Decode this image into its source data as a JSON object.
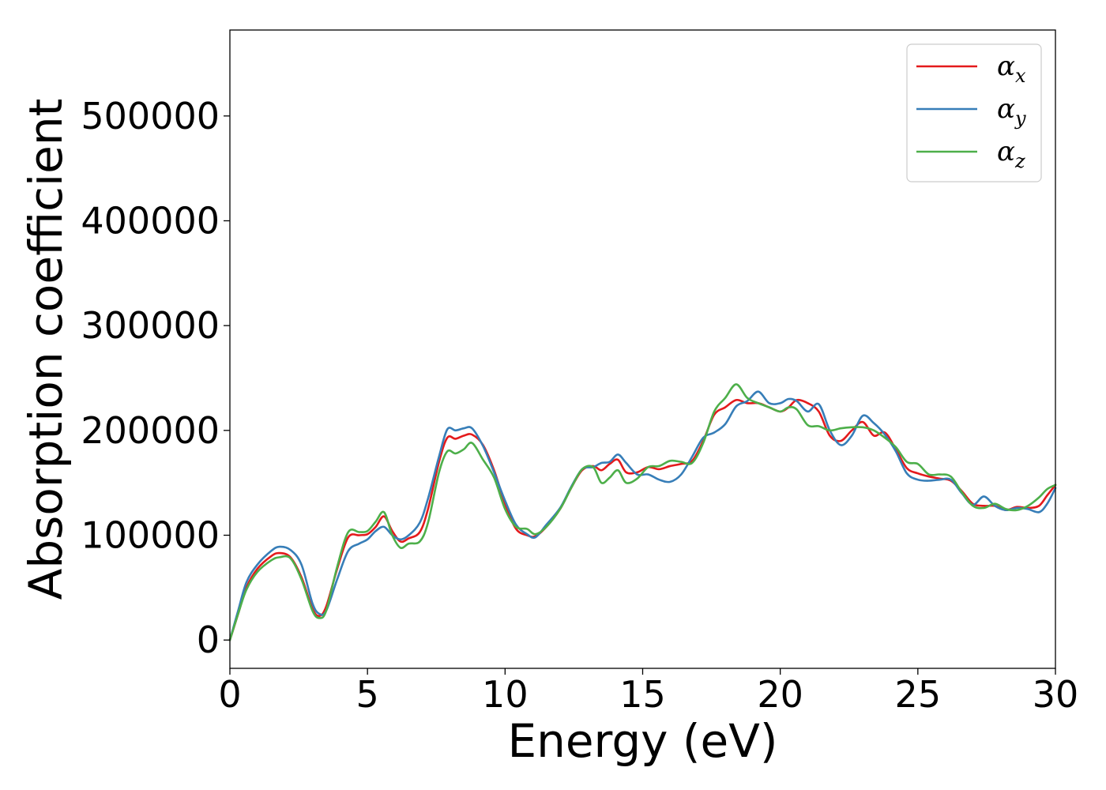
{
  "chart_data": {
    "type": "line",
    "title": "",
    "xlabel": "Energy (eV)",
    "ylabel": "Absorption coefficient",
    "xlim": [
      0,
      30
    ],
    "ylim": [
      -27000,
      582000
    ],
    "xticks": [
      0,
      5,
      10,
      15,
      20,
      25,
      30
    ],
    "yticks": [
      0,
      100000,
      200000,
      300000,
      400000,
      500000
    ],
    "grid": false,
    "legend_position": "top-right",
    "series": [
      {
        "name": "α",
        "subscript": "x",
        "color": "#e41a1c",
        "x": [
          0,
          0.3,
          0.6,
          1.0,
          1.5,
          1.8,
          2.2,
          2.6,
          3.0,
          3.25,
          3.5,
          3.9,
          4.3,
          4.7,
          5.0,
          5.3,
          5.6,
          5.9,
          6.2,
          6.5,
          6.9,
          7.2,
          7.6,
          7.9,
          8.2,
          8.5,
          8.8,
          9.2,
          9.6,
          10.0,
          10.4,
          10.8,
          11.1,
          11.5,
          12.0,
          12.4,
          12.8,
          13.2,
          13.5,
          13.8,
          14.1,
          14.4,
          14.8,
          15.2,
          15.6,
          16.0,
          16.4,
          16.8,
          17.2,
          17.6,
          18.0,
          18.4,
          18.8,
          19.2,
          19.6,
          20.0,
          20.3,
          20.6,
          21.0,
          21.4,
          21.8,
          22.2,
          22.6,
          23.0,
          23.4,
          23.8,
          24.2,
          24.6,
          25.0,
          25.4,
          25.8,
          26.2,
          26.6,
          27.0,
          27.4,
          27.8,
          28.2,
          28.6,
          29.0,
          29.4,
          29.7,
          30.0
        ],
        "y": [
          0,
          25000,
          50000,
          68000,
          80000,
          83000,
          79000,
          60000,
          30000,
          23000,
          32000,
          68000,
          98000,
          100000,
          101000,
          108000,
          118000,
          104000,
          94000,
          97000,
          103000,
          125000,
          170000,
          193000,
          192000,
          195000,
          196000,
          186000,
          162000,
          130000,
          106000,
          100000,
          99000,
          108000,
          125000,
          145000,
          162000,
          166000,
          162000,
          168000,
          172000,
          160000,
          160000,
          165000,
          163000,
          166000,
          168000,
          171000,
          190000,
          215000,
          222000,
          229000,
          226000,
          226000,
          222000,
          218000,
          222000,
          229000,
          226000,
          218000,
          195000,
          190000,
          200000,
          208000,
          195000,
          198000,
          182000,
          164000,
          159000,
          156000,
          154000,
          152000,
          142000,
          130000,
          128000,
          128000,
          124000,
          127000,
          126000,
          128000,
          138000,
          148000
        ]
      },
      {
        "name": "α",
        "subscript": "y",
        "color": "#377eb8",
        "x": [
          0,
          0.3,
          0.6,
          1.0,
          1.5,
          1.8,
          2.2,
          2.6,
          3.0,
          3.25,
          3.5,
          3.9,
          4.3,
          4.7,
          5.0,
          5.3,
          5.6,
          5.9,
          6.2,
          6.5,
          6.9,
          7.2,
          7.6,
          7.9,
          8.2,
          8.5,
          8.8,
          9.2,
          9.6,
          10.0,
          10.4,
          10.8,
          11.1,
          11.5,
          12.0,
          12.4,
          12.8,
          13.2,
          13.5,
          13.8,
          14.1,
          14.4,
          14.8,
          15.2,
          15.6,
          16.0,
          16.4,
          16.8,
          17.2,
          17.6,
          18.0,
          18.4,
          18.8,
          19.2,
          19.6,
          20.0,
          20.3,
          20.6,
          21.0,
          21.4,
          21.8,
          22.2,
          22.6,
          23.0,
          23.4,
          23.8,
          24.2,
          24.6,
          25.0,
          25.4,
          25.8,
          26.2,
          26.6,
          27.0,
          27.4,
          27.8,
          28.2,
          28.6,
          29.0,
          29.4,
          29.7,
          30.0
        ],
        "y": [
          0,
          28000,
          55000,
          72000,
          85000,
          89000,
          86000,
          72000,
          35000,
          25000,
          28000,
          58000,
          85000,
          92000,
          96000,
          104000,
          108000,
          100000,
          96000,
          100000,
          112000,
          135000,
          175000,
          201000,
          200000,
          202000,
          202000,
          185000,
          160000,
          133000,
          110000,
          101000,
          98000,
          110000,
          126000,
          146000,
          163000,
          165000,
          169000,
          170000,
          177000,
          169000,
          158000,
          158000,
          153000,
          151000,
          158000,
          175000,
          193000,
          198000,
          206000,
          223000,
          228000,
          237000,
          226000,
          226000,
          230000,
          228000,
          218000,
          225000,
          200000,
          186000,
          195000,
          214000,
          207000,
          196000,
          180000,
          159000,
          153000,
          152000,
          153000,
          153000,
          140000,
          129000,
          137000,
          128000,
          124000,
          126000,
          125000,
          122000,
          130000,
          145000
        ]
      },
      {
        "name": "α",
        "subscript": "z",
        "color": "#4daf4a",
        "x": [
          0,
          0.3,
          0.6,
          1.0,
          1.5,
          1.8,
          2.2,
          2.6,
          3.0,
          3.25,
          3.5,
          3.9,
          4.3,
          4.7,
          5.0,
          5.3,
          5.6,
          5.9,
          6.2,
          6.5,
          6.9,
          7.2,
          7.6,
          7.9,
          8.2,
          8.5,
          8.8,
          9.2,
          9.6,
          10.0,
          10.4,
          10.8,
          11.1,
          11.5,
          12.0,
          12.4,
          12.8,
          13.2,
          13.5,
          13.8,
          14.1,
          14.4,
          14.8,
          15.2,
          15.6,
          16.0,
          16.4,
          16.8,
          17.2,
          17.6,
          18.0,
          18.4,
          18.8,
          19.2,
          19.6,
          20.0,
          20.3,
          20.6,
          21.0,
          21.4,
          21.8,
          22.2,
          22.6,
          23.0,
          23.4,
          23.8,
          24.2,
          24.6,
          25.0,
          25.4,
          25.8,
          26.2,
          26.6,
          27.0,
          27.4,
          27.8,
          28.2,
          28.6,
          29.0,
          29.4,
          29.7,
          30.0
        ],
        "y": [
          0,
          25000,
          48000,
          65000,
          76000,
          79000,
          78000,
          58000,
          28000,
          21000,
          28000,
          70000,
          103000,
          103000,
          104000,
          113000,
          122000,
          100000,
          88000,
          92000,
          94000,
          112000,
          160000,
          180000,
          178000,
          182000,
          188000,
          172000,
          155000,
          125000,
          108000,
          106000,
          101000,
          108000,
          125000,
          145000,
          163000,
          165000,
          150000,
          155000,
          162000,
          150000,
          154000,
          165000,
          166000,
          171000,
          170000,
          169000,
          188000,
          218000,
          231000,
          244000,
          231000,
          226000,
          222000,
          218000,
          222000,
          220000,
          205000,
          204000,
          200000,
          202000,
          203000,
          203000,
          200000,
          193000,
          184000,
          170000,
          168000,
          158000,
          158000,
          156000,
          141000,
          128000,
          126000,
          130000,
          125000,
          124000,
          128000,
          136000,
          144000,
          148000
        ]
      }
    ]
  }
}
